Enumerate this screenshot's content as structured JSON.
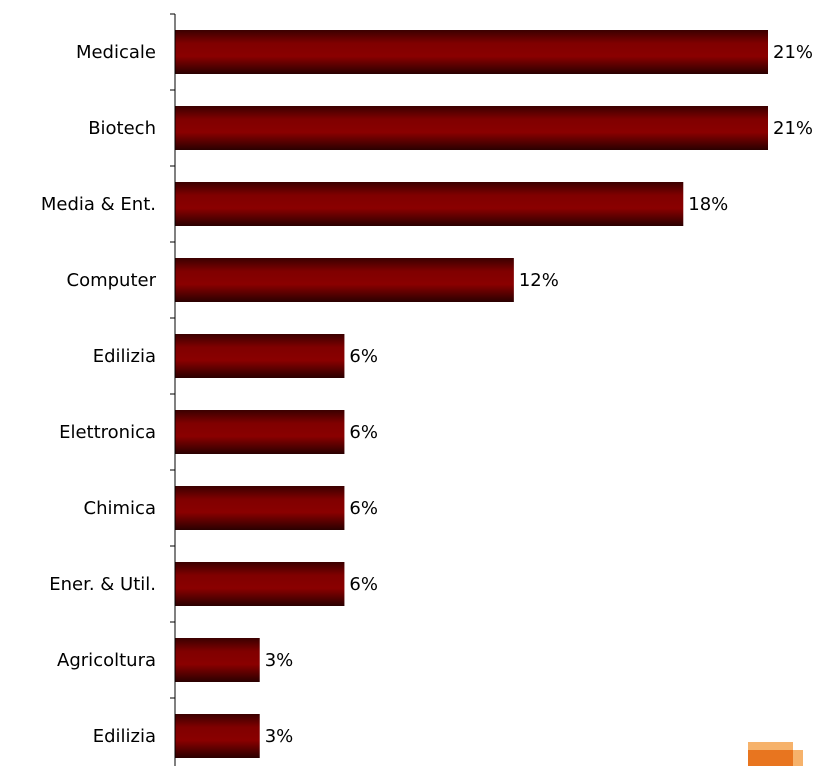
{
  "chart_data": {
    "type": "bar",
    "orientation": "horizontal",
    "categories": [
      "Medicale",
      "Biotech",
      "Media & Ent.",
      "Computer",
      "Edilizia",
      "Elettronica",
      "Chimica",
      "Ener. & Util.",
      "Agricoltura",
      "Edilizia"
    ],
    "values": [
      21,
      21,
      18,
      12,
      6,
      6,
      6,
      6,
      3,
      3
    ],
    "value_labels": [
      "21%",
      "21%",
      "18%",
      "12%",
      "6%",
      "6%",
      "6%",
      "6%",
      "3%",
      "3%"
    ],
    "unit": "%",
    "title": "",
    "xlabel": "",
    "ylabel": "",
    "xlim": [
      0,
      21
    ],
    "grid": false,
    "legend": "none"
  },
  "colors": {
    "bar_main": "#800000",
    "bar_edge": "#2a0000",
    "axis": "#000000",
    "deco_orange": "#e8751f",
    "deco_light": "#f6b26b"
  },
  "decoration": {
    "icon": "orange-squares-logo"
  }
}
